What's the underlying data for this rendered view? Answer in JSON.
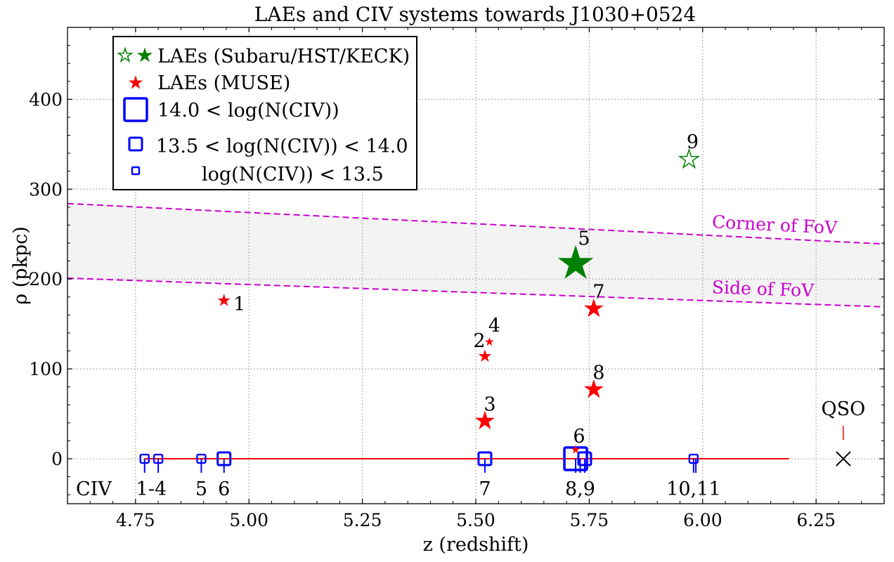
{
  "chart_data": {
    "type": "scatter",
    "title": "LAEs and CIV systems towards J1030+0524",
    "xlabel": "z (redshift)",
    "ylabel": "ρ (pkpc)",
    "xlim": [
      4.6,
      6.4
    ],
    "ylim": [
      -50,
      480
    ],
    "xticks": [
      4.75,
      5.0,
      5.25,
      5.5,
      5.75,
      6.0,
      6.25
    ],
    "xtick_labels": [
      "4.75",
      "5.00",
      "5.25",
      "5.50",
      "5.75",
      "6.00",
      "6.25"
    ],
    "yticks": [
      0,
      100,
      200,
      300,
      400
    ],
    "ytick_labels": [
      "0",
      "100",
      "200",
      "300",
      "400"
    ],
    "grid": true,
    "legend": {
      "position": "top-left",
      "entries": [
        "LAEs (Subaru/HST/KECK)",
        "LAEs (MUSE)",
        "14.0 < log(N(CIV))",
        "13.5 < log(N(CIV)) < 14.0",
        "log(N(CIV)) < 13.5"
      ]
    },
    "fov_lines": [
      {
        "name": "Corner of FoV",
        "x": [
          4.6,
          6.4
        ],
        "y": [
          284,
          239
        ],
        "color": "#cc00cc"
      },
      {
        "name": "Side of FoV",
        "x": [
          4.6,
          6.4
        ],
        "y": [
          201,
          169
        ],
        "color": "#cc00cc"
      }
    ],
    "sightline": {
      "x_start": 4.77,
      "x_end": 6.19,
      "y": 0,
      "color": "#ff0000"
    },
    "laes_subaru": [
      {
        "label": "5",
        "z": 5.72,
        "rho": 217,
        "filled": true,
        "size": "large"
      },
      {
        "label": "9",
        "z": 5.97,
        "rho": 333,
        "filled": false,
        "size": "medium"
      }
    ],
    "laes_muse": [
      {
        "label": "1",
        "z": 4.945,
        "rho": 176,
        "size": "small"
      },
      {
        "label": "2",
        "z": 5.52,
        "rho": 114,
        "size": "small"
      },
      {
        "label": "4",
        "z": 5.53,
        "rho": 130,
        "size": "xsmall"
      },
      {
        "label": "3",
        "z": 5.52,
        "rho": 42,
        "size": "medium"
      },
      {
        "label": "6",
        "z": 5.72,
        "rho": 10,
        "size": "xsmall"
      },
      {
        "label": "7",
        "z": 5.76,
        "rho": 167,
        "size": "medium"
      },
      {
        "label": "8",
        "z": 5.76,
        "rho": 77,
        "size": "medium"
      }
    ],
    "civ_systems": [
      {
        "z": 4.77,
        "size": "small"
      },
      {
        "z": 4.8,
        "size": "small"
      },
      {
        "z": 4.895,
        "size": "small"
      },
      {
        "z": 4.945,
        "size": "medium"
      },
      {
        "z": 5.52,
        "size": "medium"
      },
      {
        "z": 5.72,
        "size": "large"
      },
      {
        "z": 5.74,
        "size": "medium"
      },
      {
        "z": 5.98,
        "size": "small"
      }
    ],
    "civ_ticks_z": [
      4.77,
      4.8,
      4.895,
      4.945,
      5.52,
      5.72,
      5.73,
      5.74,
      5.98,
      5.985
    ],
    "civ_group_labels": [
      {
        "text": "1-4",
        "z": 4.785
      },
      {
        "text": "5",
        "z": 4.895
      },
      {
        "text": "6",
        "z": 4.945
      },
      {
        "text": "7",
        "z": 5.52
      },
      {
        "text": "8,9",
        "z": 5.73
      },
      {
        "text": "10,11",
        "z": 5.98
      }
    ],
    "civ_text": "CIV",
    "qso": {
      "label": "QSO",
      "z": 6.31,
      "rho": 0
    }
  }
}
